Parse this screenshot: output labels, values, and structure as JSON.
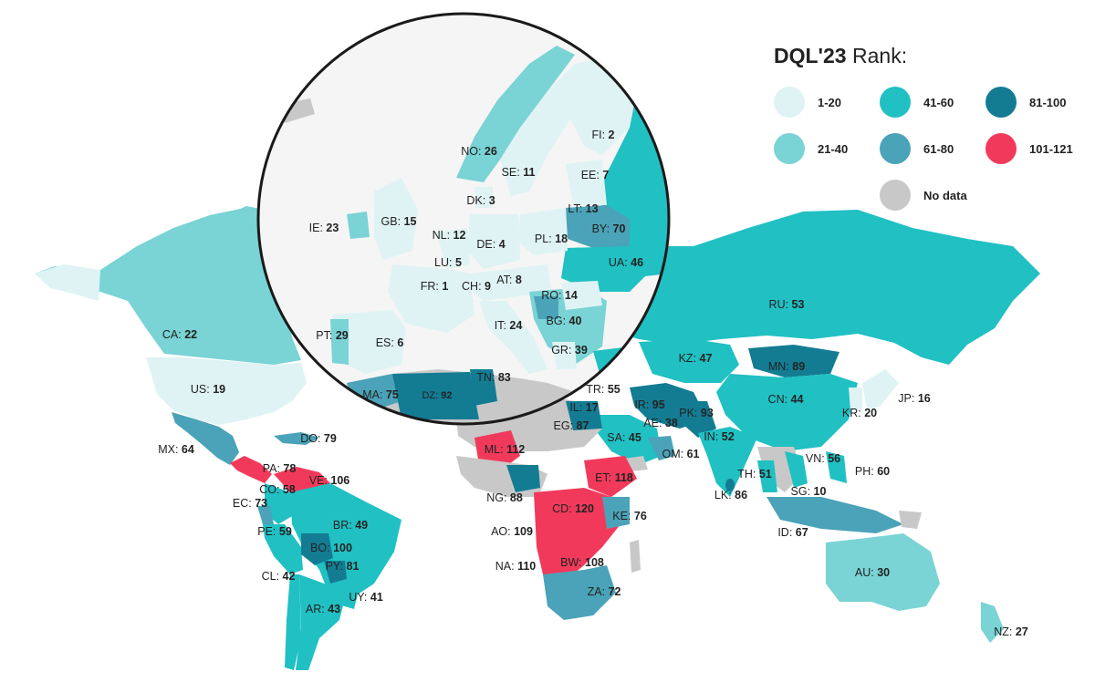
{
  "legend": {
    "title_bold": "DQL'23",
    "title_rest": " Rank:",
    "items": [
      {
        "label": "1-20",
        "color": "#dff3f4"
      },
      {
        "label": "41-60",
        "color": "#20c0c3"
      },
      {
        "label": "81-100",
        "color": "#137c93"
      },
      {
        "label": "21-40",
        "color": "#7ad3d4"
      },
      {
        "label": "61-80",
        "color": "#4aa3b8"
      },
      {
        "label": "101-121",
        "color": "#f13a5b"
      },
      {
        "label": "No data",
        "color": "#c8c8c8"
      }
    ]
  },
  "countries": [
    {
      "code": "FI",
      "rank": "2"
    },
    {
      "code": "NO",
      "rank": "26"
    },
    {
      "code": "SE",
      "rank": "11"
    },
    {
      "code": "EE",
      "rank": "7"
    },
    {
      "code": "DK",
      "rank": "3"
    },
    {
      "code": "LT",
      "rank": "13"
    },
    {
      "code": "IE",
      "rank": "23"
    },
    {
      "code": "GB",
      "rank": "15"
    },
    {
      "code": "BY",
      "rank": "70"
    },
    {
      "code": "NL",
      "rank": "12"
    },
    {
      "code": "DE",
      "rank": "4"
    },
    {
      "code": "PL",
      "rank": "18"
    },
    {
      "code": "LU",
      "rank": "5"
    },
    {
      "code": "UA",
      "rank": "46"
    },
    {
      "code": "AT",
      "rank": "8"
    },
    {
      "code": "FR",
      "rank": "1"
    },
    {
      "code": "CH",
      "rank": "9"
    },
    {
      "code": "RO",
      "rank": "14"
    },
    {
      "code": "BG",
      "rank": "40"
    },
    {
      "code": "PT",
      "rank": "29"
    },
    {
      "code": "ES",
      "rank": "6"
    },
    {
      "code": "IT",
      "rank": "24"
    },
    {
      "code": "GR",
      "rank": "39"
    },
    {
      "code": "TN",
      "rank": "83"
    },
    {
      "code": "MA",
      "rank": "75"
    },
    {
      "code": "DZ",
      "rank": "92"
    },
    {
      "code": "RU",
      "rank": "53"
    },
    {
      "code": "CA",
      "rank": "22"
    },
    {
      "code": "KZ",
      "rank": "47"
    },
    {
      "code": "MN",
      "rank": "89"
    },
    {
      "code": "US",
      "rank": "19"
    },
    {
      "code": "TR",
      "rank": "55"
    },
    {
      "code": "IR",
      "rank": "95"
    },
    {
      "code": "IL",
      "rank": "17"
    },
    {
      "code": "JP",
      "rank": "16"
    },
    {
      "code": "CN",
      "rank": "44"
    },
    {
      "code": "PK",
      "rank": "93"
    },
    {
      "code": "AE",
      "rank": "38"
    },
    {
      "code": "KR",
      "rank": "20"
    },
    {
      "code": "EG",
      "rank": "87"
    },
    {
      "code": "DO",
      "rank": "79"
    },
    {
      "code": "SA",
      "rank": "45"
    },
    {
      "code": "IN",
      "rank": "52"
    },
    {
      "code": "MX",
      "rank": "64"
    },
    {
      "code": "ML",
      "rank": "112"
    },
    {
      "code": "OM",
      "rank": "61"
    },
    {
      "code": "VN",
      "rank": "56"
    },
    {
      "code": "PA",
      "rank": "78"
    },
    {
      "code": "VE",
      "rank": "106"
    },
    {
      "code": "TH",
      "rank": "51"
    },
    {
      "code": "PH",
      "rank": "60"
    },
    {
      "code": "ET",
      "rank": "118"
    },
    {
      "code": "CO",
      "rank": "58"
    },
    {
      "code": "EC",
      "rank": "73"
    },
    {
      "code": "NG",
      "rank": "88"
    },
    {
      "code": "LK",
      "rank": "86"
    },
    {
      "code": "SG",
      "rank": "10"
    },
    {
      "code": "CD",
      "rank": "120"
    },
    {
      "code": "KE",
      "rank": "76"
    },
    {
      "code": "BR",
      "rank": "49"
    },
    {
      "code": "PE",
      "rank": "59"
    },
    {
      "code": "AO",
      "rank": "109"
    },
    {
      "code": "ID",
      "rank": "67"
    },
    {
      "code": "BO",
      "rank": "100"
    },
    {
      "code": "NA",
      "rank": "110"
    },
    {
      "code": "BW",
      "rank": "108"
    },
    {
      "code": "PY",
      "rank": "81"
    },
    {
      "code": "CL",
      "rank": "42"
    },
    {
      "code": "AU",
      "rank": "30"
    },
    {
      "code": "UY",
      "rank": "41"
    },
    {
      "code": "ZA",
      "rank": "72"
    },
    {
      "code": "AR",
      "rank": "43"
    },
    {
      "code": "NZ",
      "rank": "27"
    }
  ]
}
